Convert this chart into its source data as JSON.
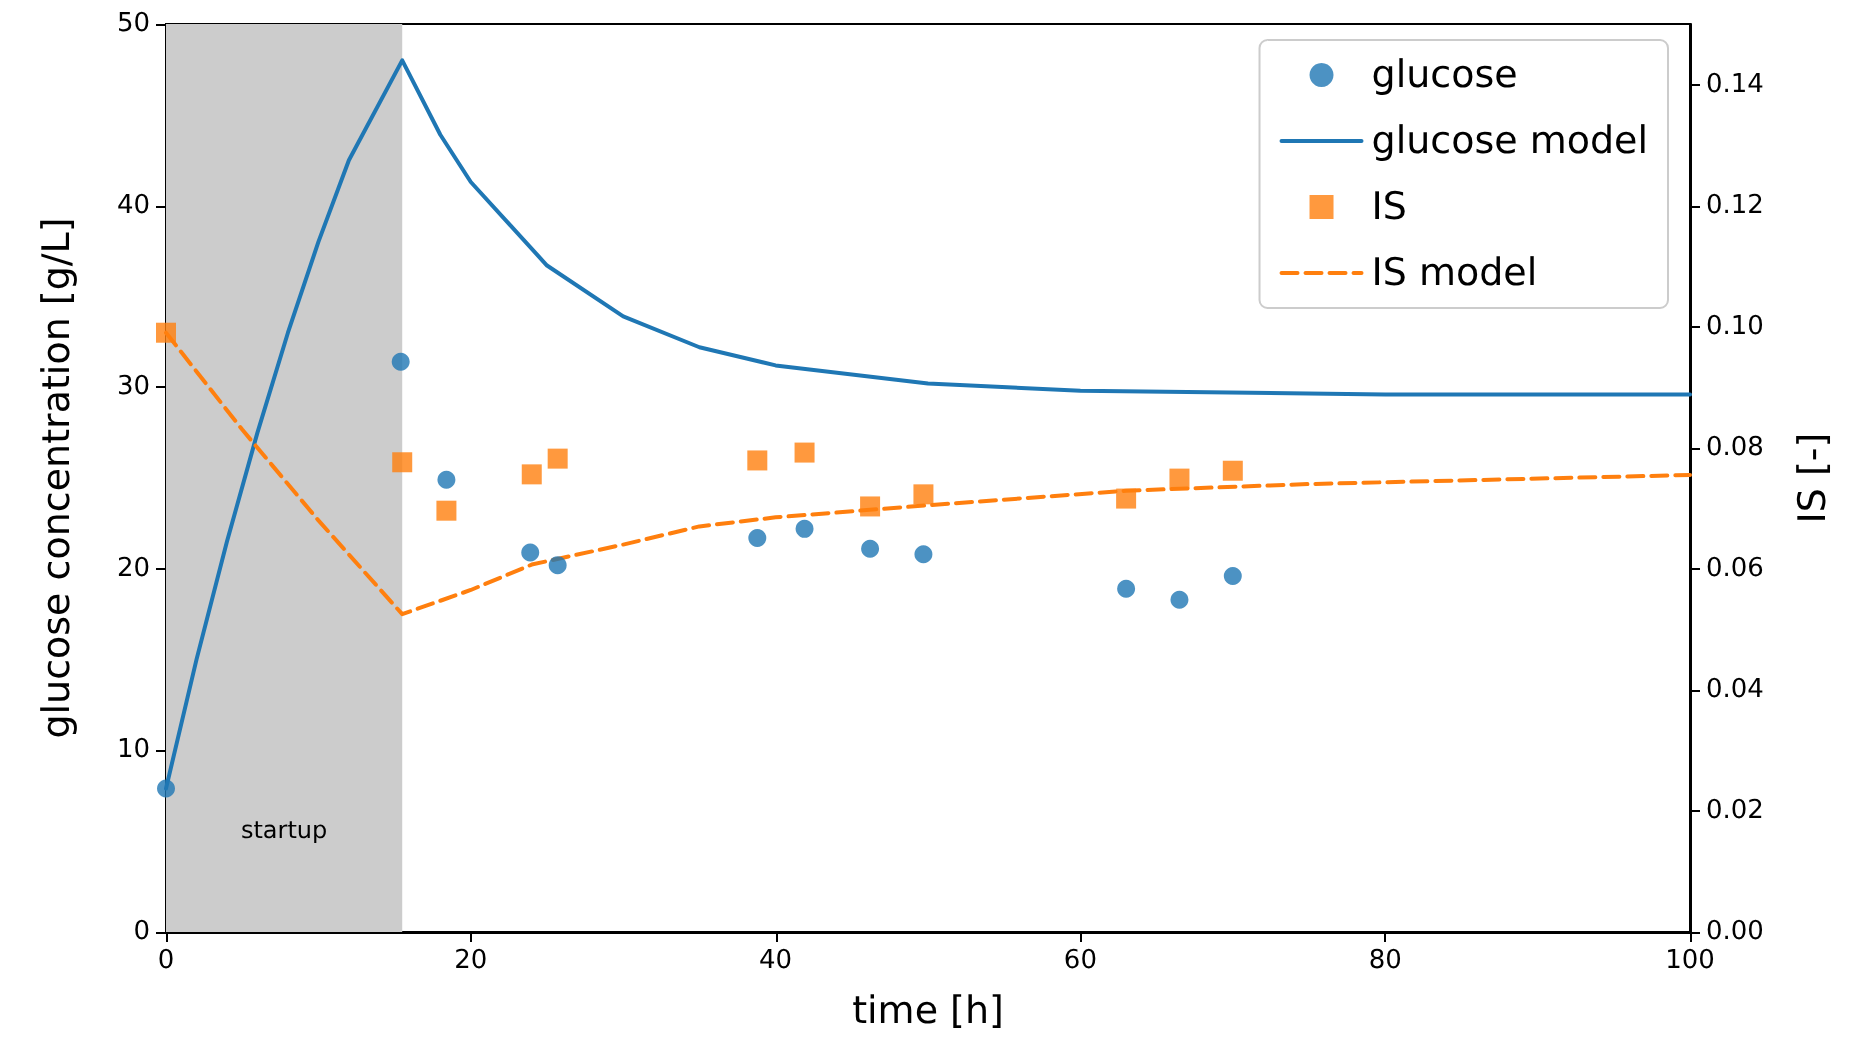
{
  "chart_data": {
    "type": "scatter",
    "xlabel": "time [h]",
    "ylabel": "glucose concentration [g/L]",
    "y2label": "IS [-]",
    "xlim": [
      0,
      100
    ],
    "xticks": [
      0,
      20,
      40,
      60,
      80,
      100
    ],
    "ylim": [
      0,
      50
    ],
    "yticks": [
      0,
      10,
      20,
      30,
      40,
      50
    ],
    "y2lim": [
      0,
      0.15
    ],
    "y2ticks": [
      {
        "value": 0,
        "label": "0.00"
      },
      {
        "value": 0.02,
        "label": "0.02"
      },
      {
        "value": 0.04,
        "label": "0.04"
      },
      {
        "value": 0.06,
        "label": "0.06"
      },
      {
        "value": 0.08,
        "label": "0.08"
      },
      {
        "value": 0.1,
        "label": "0.10"
      },
      {
        "value": 0.12,
        "label": "0.12"
      },
      {
        "value": 0.14,
        "label": "0.14"
      }
    ],
    "grid": false,
    "legend": "top right",
    "bands": [
      {
        "axis": "x",
        "from": 0,
        "to": 15.5,
        "label": "startup",
        "color": "#cccccc"
      }
    ],
    "series": [
      {
        "name": "glucose",
        "type": "scatter",
        "marker": "circle",
        "color": "#1f77b4",
        "x": [
          0,
          15.4,
          18.4,
          23.9,
          25.7,
          38.8,
          41.9,
          46.2,
          49.7,
          63,
          66.5,
          70
        ],
        "values": [
          7.9,
          31.4,
          24.9,
          20.9,
          20.2,
          21.7,
          22.2,
          21.1,
          20.8,
          18.9,
          18.3,
          19.6
        ]
      },
      {
        "name": "glucose model",
        "type": "line",
        "line_style": "solid",
        "color": "#1f77b4",
        "x": [
          0,
          2,
          4,
          6,
          8,
          10,
          12,
          15.5,
          18,
          20,
          25,
          30,
          35,
          40,
          50,
          60,
          80,
          100
        ],
        "values": [
          7.9,
          15,
          21.5,
          27.5,
          33,
          38,
          42.5,
          48,
          43.9,
          41.3,
          36.7,
          33.9,
          32.2,
          31.2,
          30.2,
          29.8,
          29.6,
          29.6
        ]
      },
      {
        "name": "IS",
        "type": "scatter",
        "marker": "square",
        "axis": "y2",
        "color": "#ff7f0e",
        "x": [
          0,
          15.5,
          18.4,
          24,
          25.7,
          38.8,
          41.9,
          46.2,
          49.7,
          63,
          66.5,
          70
        ],
        "values": [
          0.099,
          0.0776,
          0.0696,
          0.0756,
          0.0782,
          0.0779,
          0.0792,
          0.0703,
          0.0723,
          0.0716,
          0.0749,
          0.0762
        ]
      },
      {
        "name": "IS model",
        "type": "line",
        "line_style": "dashed",
        "axis": "y2",
        "color": "#ff7f0e",
        "x": [
          0,
          5,
          10,
          15.5,
          20,
          24,
          30,
          35,
          40,
          50,
          63,
          75,
          100
        ],
        "values": [
          0.099,
          0.083,
          0.068,
          0.0525,
          0.0565,
          0.0607,
          0.064,
          0.067,
          0.0685,
          0.0705,
          0.0729,
          0.074,
          0.0755
        ]
      }
    ]
  }
}
